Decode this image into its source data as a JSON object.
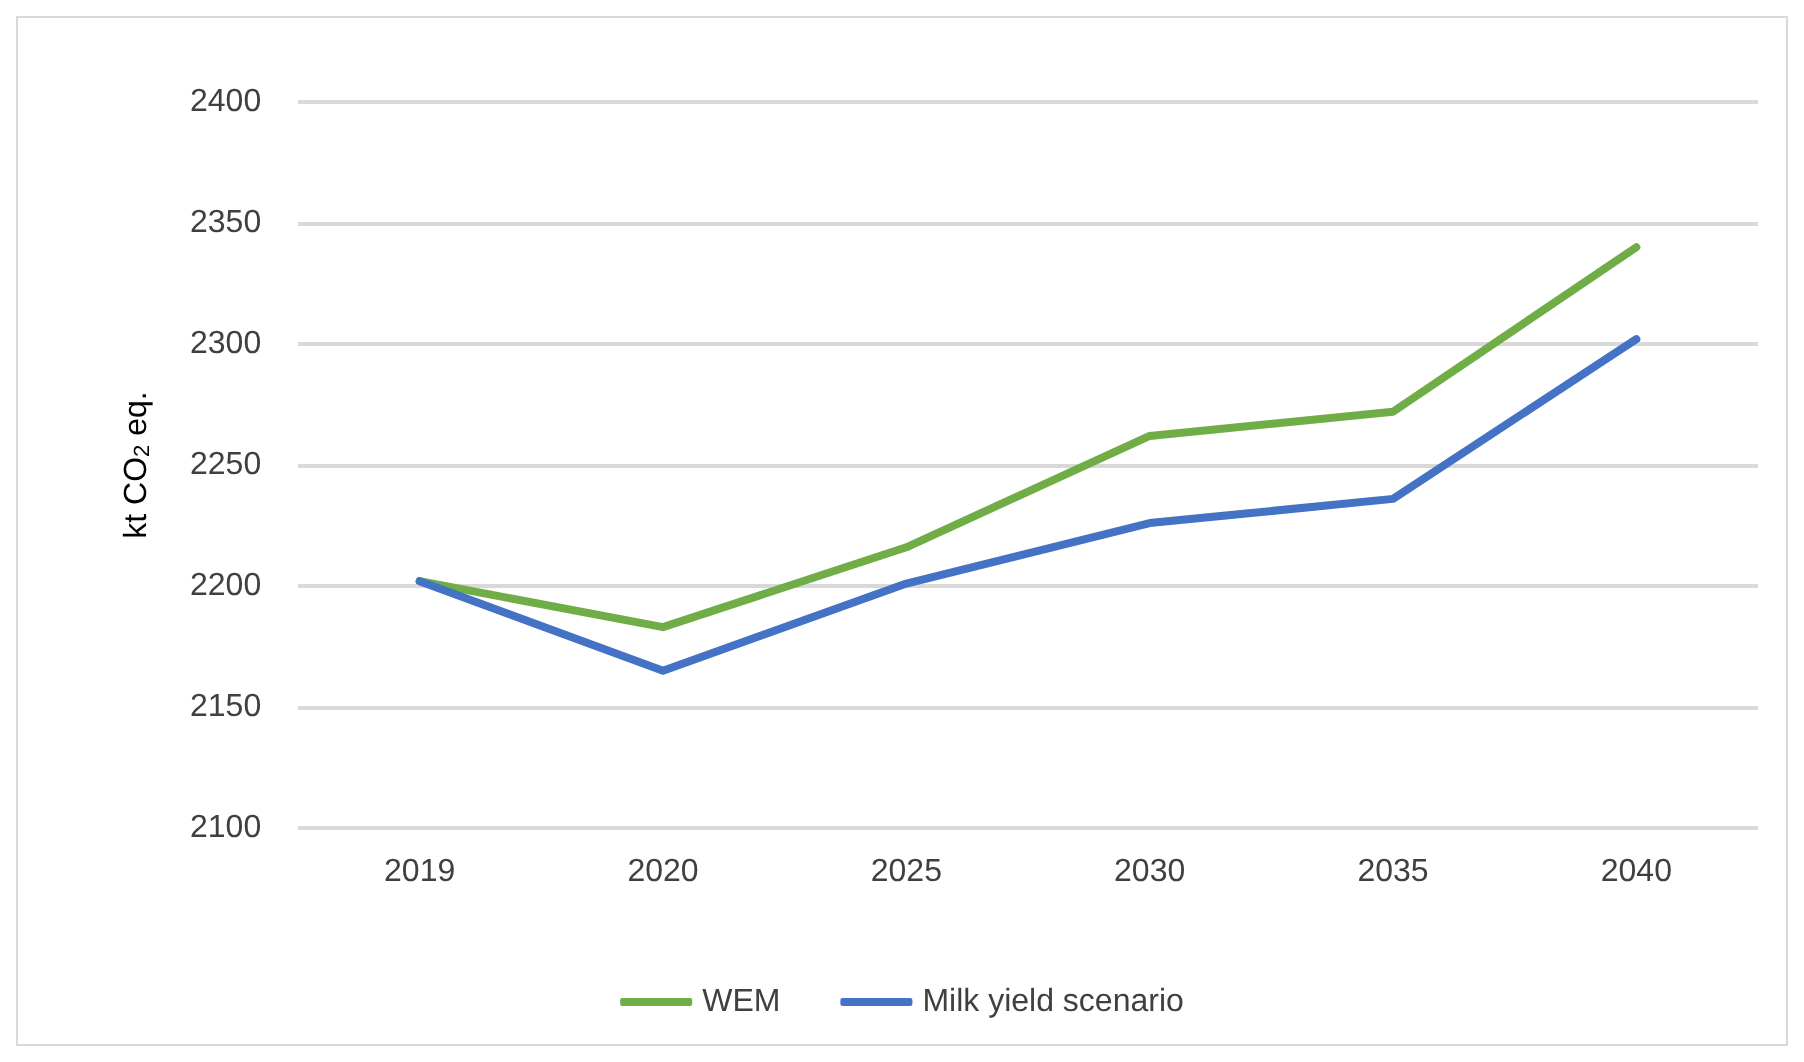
{
  "chart_data": {
    "type": "line",
    "ylabel": "kt CO$_{2}$ eq.",
    "categories": [
      "2019",
      "2020",
      "2025",
      "2030",
      "2035",
      "2040"
    ],
    "series": [
      {
        "name": "WEM",
        "color": "#70ad47",
        "values": [
          2202,
          2183,
          2216,
          2262,
          2272,
          2340
        ]
      },
      {
        "name": "Milk yield scenario",
        "color": "#4472c4",
        "values": [
          2202,
          2165,
          2201,
          2226,
          2236,
          2302
        ]
      }
    ],
    "ylim": [
      2100,
      2400
    ],
    "yticks": [
      2100,
      2150,
      2200,
      2250,
      2300,
      2350,
      2400
    ],
    "grid": "y",
    "legend": "bottom",
    "marker": "none",
    "line_style": "solid"
  }
}
